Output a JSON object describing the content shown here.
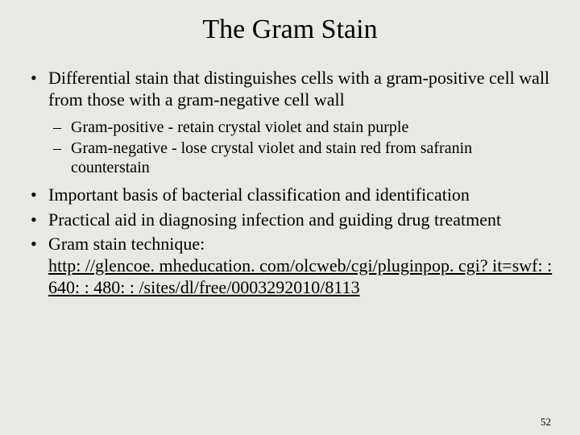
{
  "title": "The Gram Stain",
  "bullets": [
    {
      "text": "Differential stain that distinguishes cells with a gram-positive cell wall from those with a gram-negative cell wall",
      "sub": [
        "Gram-positive - retain crystal violet and stain purple",
        "Gram-negative - lose crystal violet and stain red from safranin counterstain"
      ]
    },
    {
      "text": "Important basis of bacterial classification and identification"
    },
    {
      "text": "Practical aid in diagnosing infection and guiding drug treatment"
    },
    {
      "text": "Gram stain technique:",
      "link": "http: //glencoe. mheducation. com/olcweb/cgi/pluginpop. cgi? it=swf: : 640: : 480: : /sites/dl/free/0003292010/8113"
    }
  ],
  "page_number": "52"
}
